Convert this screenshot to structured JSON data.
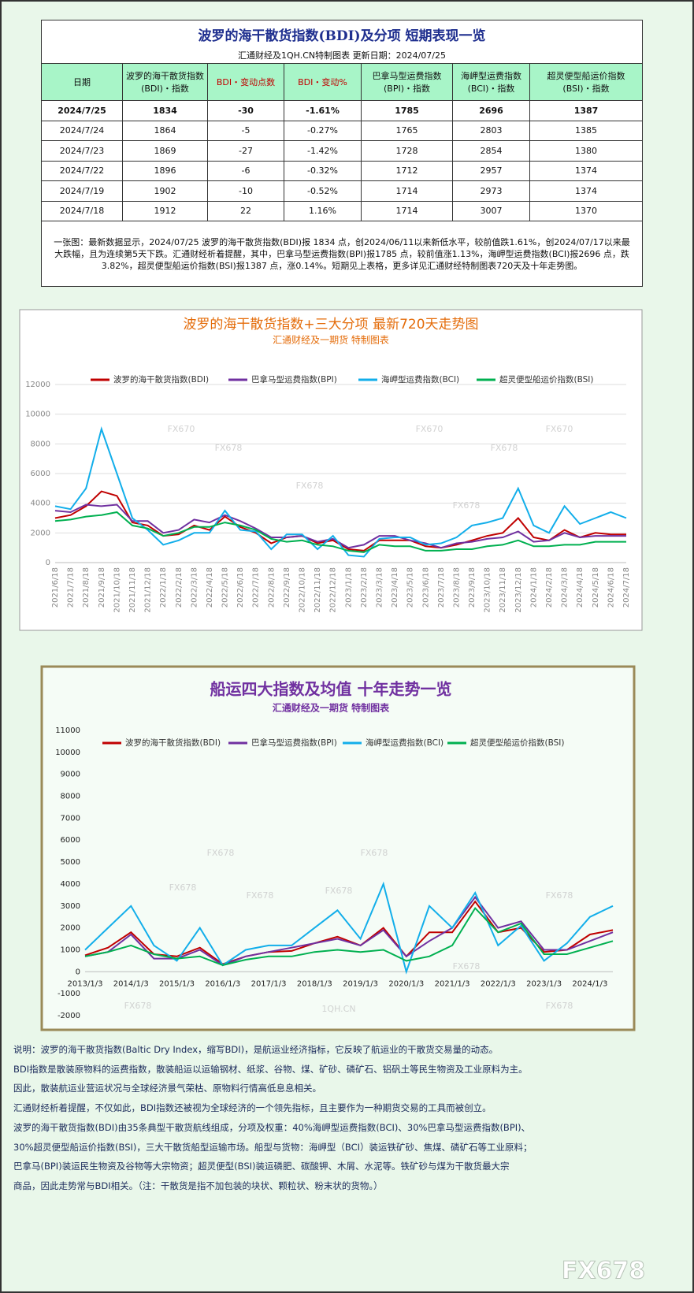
{
  "header": {
    "title": "波罗的海干散货指数(BDI)及分项  短期表现一览",
    "subtitle": "汇通财经及1QH.CN特制图表     更新日期：2024/07/25"
  },
  "table": {
    "columns": [
      "日期",
      "波罗的海干散货指数\n(BDI)・指数",
      "BDI・变动点数",
      "BDI・变动%",
      "巴拿马型运费指数\n(BPI)・指数",
      "海岬型运费指数\n(BCI)・指数",
      "超灵便型船运价指数\n(BSI)・指数"
    ],
    "rows": [
      [
        "2024/7/25",
        "1834",
        "-30",
        "-1.61%",
        "1785",
        "2696",
        "1387"
      ],
      [
        "2024/7/24",
        "1864",
        "-5",
        "-0.27%",
        "1765",
        "2803",
        "1385"
      ],
      [
        "2024/7/23",
        "1869",
        "-27",
        "-1.42%",
        "1728",
        "2854",
        "1380"
      ],
      [
        "2024/7/22",
        "1896",
        "-6",
        "-0.32%",
        "1712",
        "2957",
        "1374"
      ],
      [
        "2024/7/19",
        "1902",
        "-10",
        "-0.52%",
        "1714",
        "2973",
        "1374"
      ],
      [
        "2024/7/18",
        "1912",
        "22",
        "1.16%",
        "1714",
        "3007",
        "1370"
      ]
    ],
    "note": "一张图：最新数据显示，2024/07/25 波罗的海干散货指数(BDI)报 1834 点，创2024/06/11以来新低水平，较前值跌1.61%，创2024/07/17以来最大跌幅，且为连续第5天下跌。汇通财经析着提醒，其中，巴拿马型运费指数(BPI)报1785 点，较前值涨1.13%，海岬型运费指数(BCI)报2696 点，跌3.82%，超灵便型船运价指数(BSI)报1387 点，涨0.14%。短期见上表格，更多详见汇通财经特制图表720天及十年走势图。"
  },
  "chart_data": [
    {
      "type": "line",
      "title": "波罗的海干散货指数+三大分项  最新720天走势图",
      "subtitle": "汇通财经及一期货  特制图表",
      "categories": [
        "2021/6/18",
        "2021/7/18",
        "2021/8/18",
        "2021/9/18",
        "2021/10/18",
        "2021/11/18",
        "2021/12/18",
        "2022/1/18",
        "2022/2/18",
        "2022/3/18",
        "2022/4/18",
        "2022/5/18",
        "2022/6/18",
        "2022/7/18",
        "2022/8/18",
        "2022/9/18",
        "2022/10/18",
        "2022/11/18",
        "2022/12/18",
        "2023/1/18",
        "2023/2/18",
        "2023/3/18",
        "2023/4/18",
        "2023/5/18",
        "2023/6/18",
        "2023/7/18",
        "2023/8/18",
        "2023/9/18",
        "2023/10/18",
        "2023/11/18",
        "2023/12/18",
        "2024/1/18",
        "2024/2/18",
        "2024/3/18",
        "2024/4/18",
        "2024/5/18",
        "2024/6/18",
        "2024/7/18"
      ],
      "series": [
        {
          "name": "波罗的海干散货指数(BDI)",
          "color": "#c00000",
          "values": [
            3000,
            3200,
            3800,
            4800,
            4500,
            2700,
            2500,
            1800,
            1900,
            2500,
            2200,
            3100,
            2400,
            2000,
            1300,
            1700,
            1800,
            1300,
            1500,
            900,
            800,
            1500,
            1500,
            1500,
            1100,
            1000,
            1200,
            1500,
            1800,
            2000,
            3000,
            1700,
            1500,
            2200,
            1700,
            2000,
            1900,
            1900
          ]
        },
        {
          "name": "巴拿马型运费指数(BPI)",
          "color": "#7030a0",
          "values": [
            3500,
            3400,
            3900,
            3800,
            3900,
            2800,
            2800,
            2000,
            2200,
            2900,
            2700,
            3200,
            2800,
            2300,
            1700,
            1700,
            1800,
            1400,
            1600,
            1000,
            1200,
            1800,
            1800,
            1500,
            1300,
            1000,
            1300,
            1400,
            1600,
            1700,
            2100,
            1400,
            1500,
            2000,
            1700,
            1800,
            1800,
            1800
          ]
        },
        {
          "name": "海岬型运费指数(BCI)",
          "color": "#12aeea",
          "values": [
            3800,
            3600,
            5000,
            9000,
            6000,
            3000,
            2200,
            1200,
            1500,
            2000,
            2000,
            3500,
            2200,
            2100,
            900,
            1900,
            1900,
            900,
            1800,
            500,
            400,
            1600,
            1700,
            1700,
            1200,
            1300,
            1700,
            2500,
            2700,
            3000,
            5000,
            2500,
            2000,
            3800,
            2600,
            3000,
            3400,
            3000
          ]
        },
        {
          "name": "超灵便型船运价指数(BSI)",
          "color": "#00b050",
          "values": [
            2800,
            2900,
            3100,
            3200,
            3400,
            2500,
            2300,
            1800,
            2000,
            2400,
            2400,
            2700,
            2500,
            2200,
            1600,
            1400,
            1500,
            1200,
            1100,
            800,
            700,
            1200,
            1100,
            1100,
            800,
            800,
            900,
            900,
            1100,
            1200,
            1500,
            1100,
            1100,
            1200,
            1200,
            1400,
            1400,
            1400
          ]
        }
      ],
      "ylim": [
        0,
        12000
      ],
      "yticks": [
        0,
        2000,
        4000,
        6000,
        8000,
        10000,
        12000
      ],
      "grid": true
    },
    {
      "type": "line",
      "title": "船运四大指数及均值 十年走势一览",
      "subtitle": "汇通财经及一期货 特制图表",
      "categories": [
        "2013/1/3",
        null,
        "2014/1/3",
        null,
        "2015/1/3",
        null,
        "2016/1/3",
        null,
        "2017/1/3",
        null,
        "2018/1/3",
        null,
        "2019/1/3",
        null,
        "2020/1/3",
        null,
        "2021/1/3",
        null,
        "2022/1/3",
        null,
        "2023/1/3",
        null,
        "2024/1/3",
        null
      ],
      "series": [
        {
          "name": "波罗的海干散货指数(BDI)",
          "color": "#c00000",
          "values": [
            750,
            1100,
            1800,
            800,
            700,
            1100,
            350,
            700,
            900,
            950,
            1300,
            1600,
            1200,
            2000,
            700,
            1800,
            1800,
            3200,
            1800,
            2000,
            900,
            1000,
            1700,
            1900
          ]
        },
        {
          "name": "巴拿马型运费指数(BPI)",
          "color": "#7030a0",
          "values": [
            700,
            900,
            1700,
            600,
            600,
            1000,
            300,
            700,
            900,
            1100,
            1300,
            1500,
            1200,
            1900,
            700,
            1400,
            2000,
            3400,
            2000,
            2300,
            1000,
            1000,
            1400,
            1800
          ]
        },
        {
          "name": "海岬型运费指数(BCI)",
          "color": "#12aeea",
          "values": [
            1000,
            2000,
            3000,
            1200,
            500,
            2000,
            300,
            1000,
            1200,
            1200,
            2000,
            2800,
            1500,
            4000,
            0,
            3000,
            2000,
            3600,
            1200,
            2100,
            500,
            1300,
            2500,
            3000
          ]
        },
        {
          "name": "超灵便型船运价指数(BSI)",
          "color": "#00b050",
          "values": [
            700,
            900,
            1200,
            800,
            600,
            700,
            300,
            550,
            700,
            700,
            900,
            1000,
            900,
            1000,
            500,
            700,
            1200,
            2900,
            1800,
            2200,
            800,
            800,
            1100,
            1400
          ]
        }
      ],
      "ylim": [
        -2000,
        11000
      ],
      "yticks": [
        -2000,
        -1000,
        0,
        1000,
        2000,
        3000,
        4000,
        5000,
        6000,
        7000,
        8000,
        9000,
        10000,
        11000
      ],
      "grid": false
    }
  ],
  "description": [
    "说明：波罗的海干散货指数(Baltic Dry Index，缩写BDI)，是航运业经济指标，它反映了航运业的干散货交易量的动态。",
    "BDI指数是散装原物料的运费指数，散装船运以运输钢材、纸浆、谷物、煤、矿砂、磷矿石、铝矾土等民生物资及工业原料为主。",
    "因此，散装航运业营运状况与全球经济景气荣枯、原物料行情高低息息相关。",
    "汇通财经析着提醒，不仅如此，BDI指数还被视为全球经济的一个领先指标，且主要作为一种期货交易的工具而被创立。",
    "波罗的海干散货指数(BDI)由35条典型干散货航线组成，分项及权重：40%海岬型运费指数(BCI)、30%巴拿马型运费指数(BPI)、",
    "30%超灵便型船运价指数(BSI)，三大干散货船型运输市场。船型与货物：海岬型（BCI）装运铁矿砂、焦煤、磷矿石等工业原料；",
    "巴拿马(BPI)装运民生物资及谷物等大宗物资；超灵便型(BSI)装运磷肥、碳酸钾、木屑、水泥等。铁矿砂与煤为干散货最大宗",
    "商品，因此走势常与BDI相关。（注：干散货是指不加包装的块状、颗粒状、粉末状的货物。）"
  ],
  "watermarks": [
    "FX678",
    "FX670",
    "1QH.CN"
  ],
  "logo": "FX678"
}
